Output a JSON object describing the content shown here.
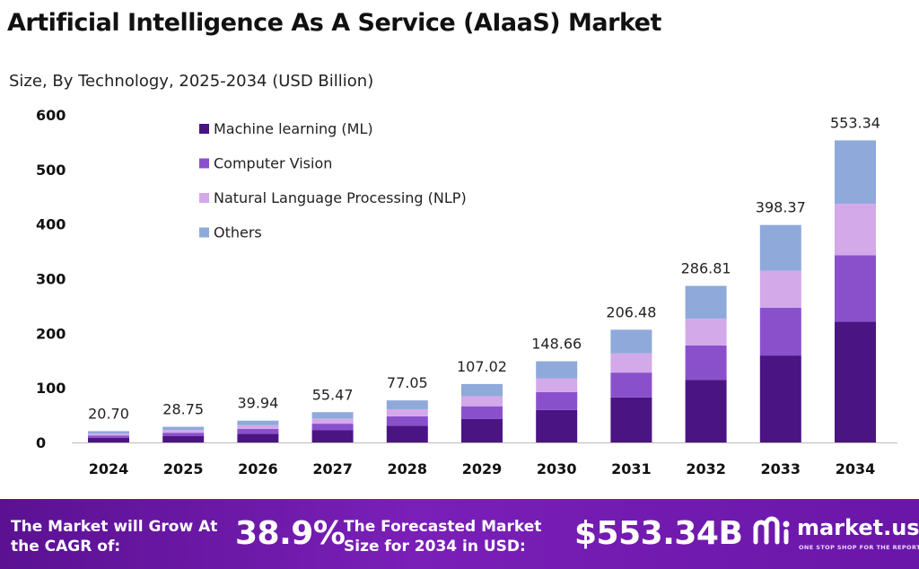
{
  "title": "Artificial Intelligence As A Service (AIaaS) Market",
  "subtitle": "Size, By Technology, 2025-2034 (USD Billion)",
  "chart_data": {
    "type": "bar",
    "stacked": true,
    "categories": [
      "2024",
      "2025",
      "2026",
      "2027",
      "2028",
      "2029",
      "2030",
      "2031",
      "2032",
      "2033",
      "2034"
    ],
    "totals": [
      20.7,
      28.75,
      39.94,
      55.47,
      77.05,
      107.02,
      148.66,
      206.48,
      286.81,
      398.37,
      553.34
    ],
    "total_labels": [
      "20.70",
      "28.75",
      "39.94",
      "55.47",
      "77.05",
      "107.02",
      "148.66",
      "206.48",
      "286.81",
      "398.37",
      "553.34"
    ],
    "series": [
      {
        "name": "Machine learning (ML)",
        "color": "#4a1583",
        "values": [
          8.3,
          11.5,
          16.0,
          22.2,
          30.8,
          42.8,
          59.5,
          82.6,
          114.7,
          159.3,
          221.3
        ]
      },
      {
        "name": "Computer Vision",
        "color": "#8a50cc",
        "values": [
          4.5,
          6.3,
          8.8,
          12.2,
          17.0,
          23.5,
          32.7,
          45.4,
          63.1,
          87.6,
          121.7
        ]
      },
      {
        "name": "Natural Language Processing (NLP)",
        "color": "#d3a9ea",
        "values": [
          3.5,
          4.9,
          6.8,
          9.4,
          13.1,
          18.2,
          25.3,
          35.1,
          48.8,
          67.7,
          94.1
        ]
      },
      {
        "name": "Others",
        "color": "#8fa9da",
        "values": [
          4.4,
          6.05,
          8.34,
          11.67,
          16.15,
          22.52,
          31.16,
          43.38,
          60.21,
          83.77,
          116.24
        ]
      }
    ],
    "yticks": [
      "0",
      "100",
      "200",
      "300",
      "400",
      "500",
      "600"
    ],
    "ylim": [
      0,
      600
    ],
    "grid": false,
    "legend_position": "top-left"
  },
  "footer": {
    "cagr_label": "The Market will Grow At the CAGR of:",
    "cagr_value": "38.9%",
    "forecast_label": "The Forecasted Market Size for 2034 in USD:",
    "forecast_value": "$553.34B",
    "brand_name": "market.us",
    "brand_tagline": "ONE STOP SHOP FOR THE REPORTS"
  }
}
